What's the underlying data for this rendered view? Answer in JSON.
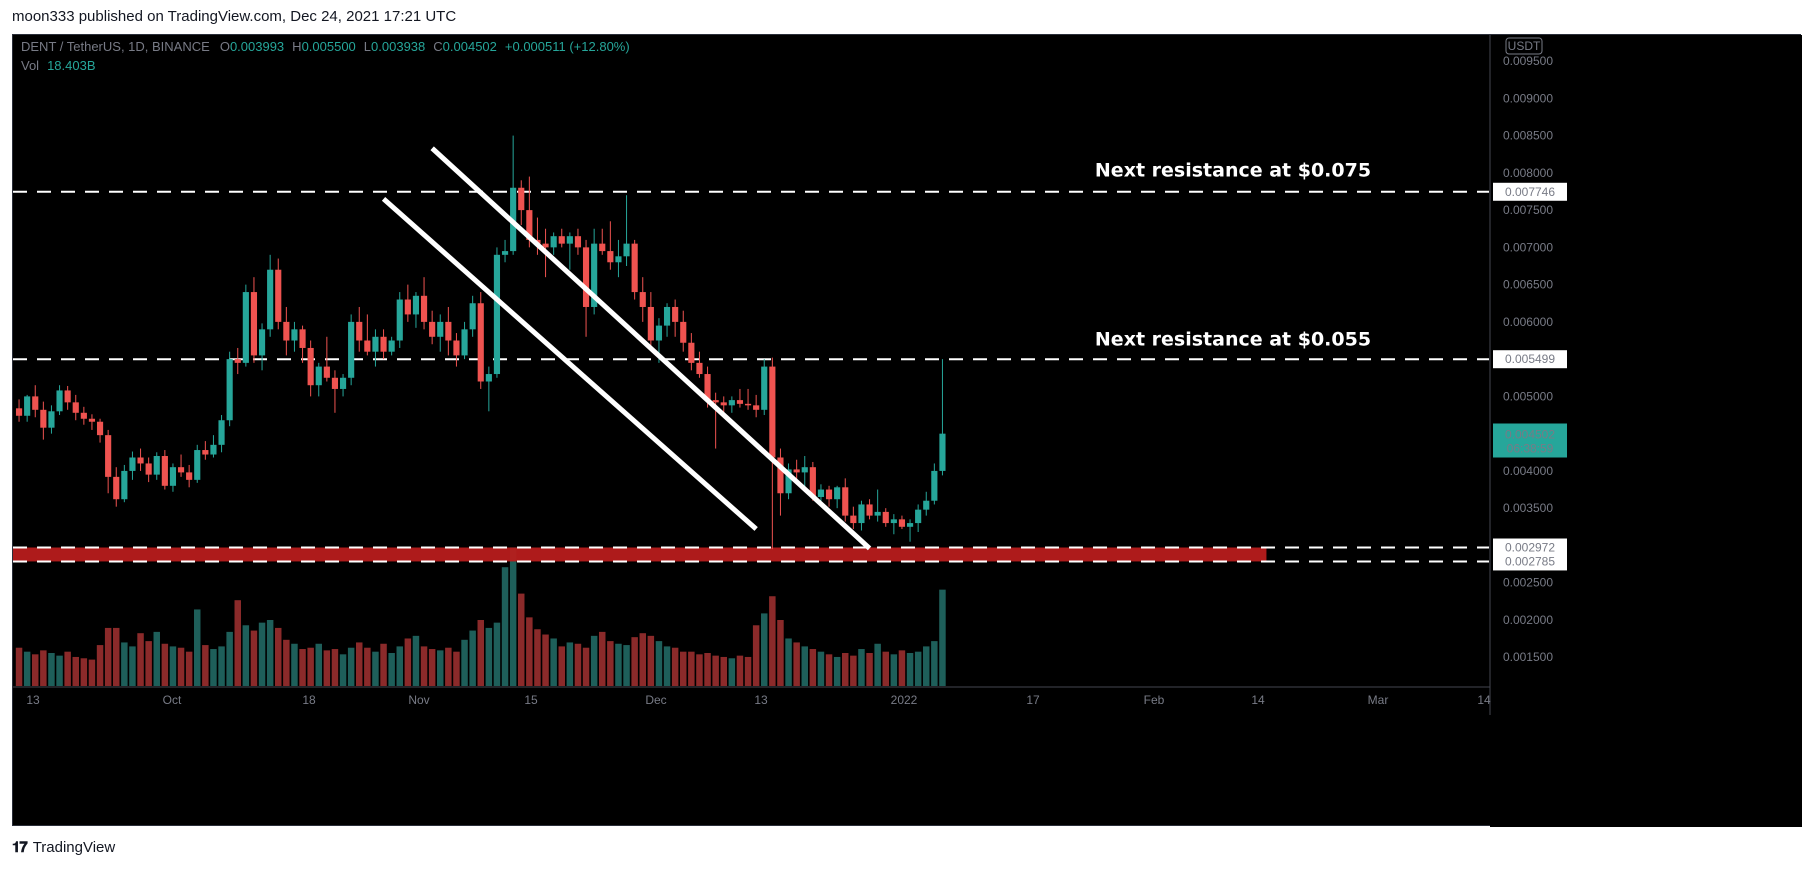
{
  "header": {
    "published": "moon333 published on TradingView.com, Dec 24, 2021 17:21 UTC"
  },
  "footer": {
    "brand": "TradingView",
    "logo_icon": "tradingview-logo-icon"
  },
  "legend": {
    "symbol": "DENT / TetherUS, 1D, BINANCE",
    "open_label": "O",
    "open": "0.003993",
    "high_label": "H",
    "high": "0.005500",
    "low_label": "L",
    "low": "0.003938",
    "close_label": "C",
    "close": "0.004502",
    "change": "+0.000511 (+12.80%)",
    "vol_label": "Vol",
    "vol": "18.403B"
  },
  "colors": {
    "background": "#000000",
    "up": "#26a69a",
    "down": "#ef5350",
    "vol_up": "#1e5f5a",
    "vol_down": "#8b2a2a",
    "support_zone": "#b71c1c",
    "lines": "#ffffff",
    "axis_text": "#787b86"
  },
  "chart_data": {
    "type": "candlestick",
    "currency": "USDT",
    "ylim": [
      0.0011,
      0.00985
    ],
    "y_ticks": [
      "0.009500",
      "0.009000",
      "0.008500",
      "0.008000",
      "0.007500",
      "0.007000",
      "0.006500",
      "0.006000",
      "0.005000",
      "0.004000",
      "0.003500",
      "0.002500",
      "0.002000",
      "0.001500"
    ],
    "x_ticks": [
      "13",
      "Oct",
      "18",
      "Nov",
      "15",
      "Dec",
      "13",
      "2022",
      "17",
      "Feb",
      "14",
      "Mar",
      "14"
    ],
    "price_labels": [
      {
        "value": "0.007746",
        "style": "plain"
      },
      {
        "value": "0.005499",
        "style": "plain"
      },
      {
        "value": "0.002972",
        "style": "plain"
      },
      {
        "value": "0.002785",
        "style": "plain"
      },
      {
        "value": "0.004502",
        "sub": "06:38:59",
        "style": "current"
      }
    ],
    "horizontal_levels": [
      0.007746,
      0.005499,
      0.002972,
      0.002785
    ],
    "annotations": [
      {
        "text": "Next resistance at $0.075",
        "price": 0.00795
      },
      {
        "text": "Next resistance at $0.055",
        "price": 0.00568
      }
    ],
    "channel_lines": [
      {
        "from": {
          "bar": 51,
          "price": 0.00833
        },
        "to": {
          "bar": 105,
          "price": 0.00296
        }
      },
      {
        "from": {
          "bar": 45,
          "price": 0.00765
        },
        "to": {
          "bar": 91,
          "price": 0.00322
        }
      }
    ],
    "support_zone": {
      "from_price": 0.002785,
      "to_price": 0.002972,
      "to_bar": 154
    },
    "candles": [
      [
        0.00484,
        0.00496,
        0.00466,
        0.00474,
        2.9
      ],
      [
        0.00474,
        0.00502,
        0.00466,
        0.005,
        2.6
      ],
      [
        0.005,
        0.00515,
        0.00472,
        0.00482,
        2.4
      ],
      [
        0.00482,
        0.00493,
        0.00442,
        0.00458,
        2.7
      ],
      [
        0.00458,
        0.00488,
        0.0045,
        0.0048,
        2.5
      ],
      [
        0.0048,
        0.00515,
        0.00475,
        0.00508,
        2.3
      ],
      [
        0.00508,
        0.00514,
        0.00482,
        0.00492,
        2.6
      ],
      [
        0.00492,
        0.00502,
        0.00468,
        0.00478,
        2.2
      ],
      [
        0.00478,
        0.00486,
        0.00462,
        0.0047,
        2.1
      ],
      [
        0.0047,
        0.00476,
        0.00455,
        0.00466,
        2.0
      ],
      [
        0.00466,
        0.0047,
        0.00438,
        0.00448,
        3.1
      ],
      [
        0.00448,
        0.00455,
        0.0037,
        0.00392,
        4.4
      ],
      [
        0.00392,
        0.00405,
        0.00352,
        0.00362,
        4.4
      ],
      [
        0.00362,
        0.00408,
        0.00358,
        0.004,
        3.3
      ],
      [
        0.004,
        0.00426,
        0.00388,
        0.00418,
        3.0
      ],
      [
        0.00418,
        0.0043,
        0.004,
        0.0041,
        4.0
      ],
      [
        0.0041,
        0.00418,
        0.00385,
        0.00395,
        3.4
      ],
      [
        0.00395,
        0.00425,
        0.00388,
        0.0042,
        4.1
      ],
      [
        0.0042,
        0.00428,
        0.00375,
        0.0038,
        3.2
      ],
      [
        0.0038,
        0.0041,
        0.00372,
        0.00405,
        3.0
      ],
      [
        0.00405,
        0.00422,
        0.00392,
        0.00398,
        2.9
      ],
      [
        0.00398,
        0.00408,
        0.00378,
        0.00388,
        2.6
      ],
      [
        0.00388,
        0.00435,
        0.00384,
        0.00428,
        5.8
      ],
      [
        0.00428,
        0.0044,
        0.00415,
        0.00422,
        3.1
      ],
      [
        0.00422,
        0.00448,
        0.00418,
        0.00435,
        2.8
      ],
      [
        0.00435,
        0.00475,
        0.00425,
        0.00468,
        3.0
      ],
      [
        0.00468,
        0.0056,
        0.0046,
        0.0055,
        4.1
      ],
      [
        0.0055,
        0.00565,
        0.0053,
        0.00545,
        6.5
      ],
      [
        0.00545,
        0.0065,
        0.0054,
        0.0064,
        4.6
      ],
      [
        0.0064,
        0.0066,
        0.00545,
        0.00555,
        4.2
      ],
      [
        0.00555,
        0.00598,
        0.00535,
        0.0059,
        4.8
      ],
      [
        0.0059,
        0.0069,
        0.0058,
        0.0067,
        5.0
      ],
      [
        0.0067,
        0.00685,
        0.0059,
        0.006,
        4.4
      ],
      [
        0.006,
        0.0062,
        0.00555,
        0.00575,
        3.5
      ],
      [
        0.00575,
        0.006,
        0.0056,
        0.0059,
        3.2
      ],
      [
        0.0059,
        0.00595,
        0.00545,
        0.00565,
        2.8
      ],
      [
        0.00565,
        0.00575,
        0.005,
        0.00515,
        2.9
      ],
      [
        0.00515,
        0.00545,
        0.005,
        0.0054,
        3.2
      ],
      [
        0.0054,
        0.0058,
        0.0052,
        0.00525,
        2.7
      ],
      [
        0.00525,
        0.00535,
        0.00478,
        0.0051,
        2.8
      ],
      [
        0.0051,
        0.0053,
        0.005,
        0.00525,
        2.4
      ],
      [
        0.00525,
        0.0061,
        0.00515,
        0.006,
        2.9
      ],
      [
        0.006,
        0.0062,
        0.0056,
        0.00575,
        3.3
      ],
      [
        0.00575,
        0.0061,
        0.00555,
        0.0056,
        2.9
      ],
      [
        0.0056,
        0.0059,
        0.0054,
        0.0058,
        2.6
      ],
      [
        0.0058,
        0.0059,
        0.0055,
        0.0056,
        3.2
      ],
      [
        0.0056,
        0.0058,
        0.00555,
        0.00575,
        2.5
      ],
      [
        0.00575,
        0.0064,
        0.00565,
        0.0063,
        3.0
      ],
      [
        0.0063,
        0.0065,
        0.006,
        0.0061,
        3.6
      ],
      [
        0.0061,
        0.0064,
        0.00592,
        0.00635,
        3.8
      ],
      [
        0.00635,
        0.0066,
        0.0059,
        0.006,
        3.0
      ],
      [
        0.006,
        0.00615,
        0.0057,
        0.0058,
        2.8
      ],
      [
        0.0058,
        0.0061,
        0.0056,
        0.006,
        2.7
      ],
      [
        0.006,
        0.0062,
        0.00555,
        0.00575,
        2.9
      ],
      [
        0.00575,
        0.00585,
        0.0054,
        0.00555,
        2.6
      ],
      [
        0.00555,
        0.006,
        0.0055,
        0.0059,
        3.5
      ],
      [
        0.0059,
        0.00635,
        0.0058,
        0.00625,
        4.2
      ],
      [
        0.00625,
        0.0064,
        0.0051,
        0.0052,
        5.0
      ],
      [
        0.0052,
        0.0054,
        0.0048,
        0.0053,
        4.4
      ],
      [
        0.0053,
        0.007,
        0.00525,
        0.0069,
        4.8
      ],
      [
        0.0069,
        0.0071,
        0.0068,
        0.00695,
        9.0
      ],
      [
        0.00695,
        0.0085,
        0.0069,
        0.0078,
        10.5
      ],
      [
        0.0078,
        0.0079,
        0.0073,
        0.0075,
        7.0
      ],
      [
        0.0075,
        0.00795,
        0.007,
        0.0071,
        5.2
      ],
      [
        0.0071,
        0.0074,
        0.0069,
        0.00705,
        4.3
      ],
      [
        0.00705,
        0.00725,
        0.0066,
        0.007,
        3.9
      ],
      [
        0.007,
        0.0072,
        0.0069,
        0.00715,
        3.6
      ],
      [
        0.00715,
        0.00725,
        0.007,
        0.00705,
        3.0
      ],
      [
        0.00705,
        0.0072,
        0.0067,
        0.00715,
        3.3
      ],
      [
        0.00715,
        0.00725,
        0.0069,
        0.007,
        3.2
      ],
      [
        0.007,
        0.0071,
        0.0058,
        0.0062,
        2.9
      ],
      [
        0.0062,
        0.00725,
        0.0061,
        0.00705,
        3.8
      ],
      [
        0.00705,
        0.00725,
        0.0069,
        0.00695,
        4.1
      ],
      [
        0.00695,
        0.00735,
        0.0067,
        0.0068,
        3.4
      ],
      [
        0.0068,
        0.0071,
        0.0066,
        0.00688,
        3.2
      ],
      [
        0.00688,
        0.0077,
        0.00675,
        0.00705,
        3.1
      ],
      [
        0.00705,
        0.0071,
        0.0063,
        0.0064,
        3.7
      ],
      [
        0.0064,
        0.0066,
        0.006,
        0.0062,
        4.0
      ],
      [
        0.0062,
        0.0064,
        0.00565,
        0.00575,
        3.8
      ],
      [
        0.00575,
        0.00605,
        0.00545,
        0.00595,
        3.4
      ],
      [
        0.00595,
        0.00625,
        0.0058,
        0.0062,
        3.0
      ],
      [
        0.0062,
        0.0063,
        0.0058,
        0.006,
        2.9
      ],
      [
        0.006,
        0.00615,
        0.0056,
        0.00572,
        2.6
      ],
      [
        0.00572,
        0.00585,
        0.00535,
        0.00545,
        2.6
      ],
      [
        0.00545,
        0.0056,
        0.00525,
        0.0053,
        2.4
      ],
      [
        0.0053,
        0.0054,
        0.00485,
        0.00495,
        2.5
      ],
      [
        0.00495,
        0.00505,
        0.0043,
        0.00492,
        2.3
      ],
      [
        0.00492,
        0.005,
        0.00478,
        0.00488,
        2.2
      ],
      [
        0.00488,
        0.005,
        0.00478,
        0.00495,
        2.1
      ],
      [
        0.00495,
        0.0051,
        0.00485,
        0.0049,
        2.3
      ],
      [
        0.0049,
        0.0051,
        0.00482,
        0.00488,
        2.2
      ],
      [
        0.00488,
        0.00502,
        0.00472,
        0.00482,
        4.6
      ],
      [
        0.00482,
        0.0055,
        0.00475,
        0.0054,
        5.5
      ],
      [
        0.0054,
        0.00552,
        0.00295,
        0.00418,
        6.8
      ],
      [
        0.00418,
        0.0043,
        0.0034,
        0.0037,
        5.0
      ],
      [
        0.0037,
        0.0041,
        0.00362,
        0.00402,
        3.6
      ],
      [
        0.00402,
        0.00415,
        0.00388,
        0.00398,
        3.3
      ],
      [
        0.00398,
        0.0042,
        0.00378,
        0.00405,
        3.0
      ],
      [
        0.00405,
        0.00412,
        0.0036,
        0.00365,
        2.8
      ],
      [
        0.00365,
        0.00382,
        0.00355,
        0.00375,
        2.6
      ],
      [
        0.00375,
        0.0038,
        0.00352,
        0.00362,
        2.4
      ],
      [
        0.00362,
        0.0038,
        0.0035,
        0.00378,
        2.2
      ],
      [
        0.00378,
        0.0039,
        0.00332,
        0.0034,
        2.5
      ],
      [
        0.0034,
        0.00352,
        0.00322,
        0.0033,
        2.3
      ],
      [
        0.0033,
        0.0036,
        0.0032,
        0.00355,
        2.8
      ],
      [
        0.00355,
        0.00362,
        0.00335,
        0.0034,
        2.5
      ],
      [
        0.0034,
        0.00375,
        0.00332,
        0.00345,
        3.2
      ],
      [
        0.00345,
        0.0035,
        0.00325,
        0.0033,
        2.6
      ],
      [
        0.0033,
        0.00342,
        0.00315,
        0.00335,
        2.4
      ],
      [
        0.00335,
        0.0034,
        0.00322,
        0.00325,
        2.7
      ],
      [
        0.00325,
        0.00335,
        0.00305,
        0.0033,
        2.5
      ],
      [
        0.0033,
        0.00355,
        0.00318,
        0.00348,
        2.6
      ],
      [
        0.00348,
        0.00372,
        0.0034,
        0.0036,
        3.0
      ],
      [
        0.0036,
        0.0041,
        0.00355,
        0.004,
        3.4
      ],
      [
        0.004,
        0.0055,
        0.00394,
        0.0045,
        7.3
      ]
    ]
  }
}
